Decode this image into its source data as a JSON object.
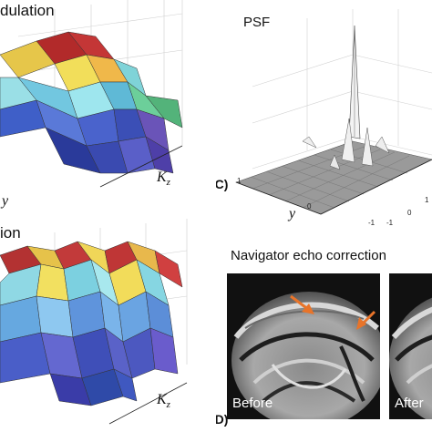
{
  "panels": {
    "a": {
      "title_fragment": "dulation",
      "axis_z": "K",
      "axis_z_sub": "z",
      "axis_y_fragment": "y"
    },
    "b": {
      "title_fragment": "ion",
      "axis_z": "K",
      "axis_z_sub": "z"
    },
    "c": {
      "label": "(C)",
      "title": "PSF",
      "axis_y": "y",
      "ticks": [
        "1",
        "0",
        "-1",
        "-1",
        "0",
        "1"
      ]
    },
    "d": {
      "label": "(D)",
      "title": "Navigator echo correction",
      "before_label": "Before",
      "after_label": "After"
    }
  },
  "colors": {
    "accent_arrow": "#e8742a"
  }
}
